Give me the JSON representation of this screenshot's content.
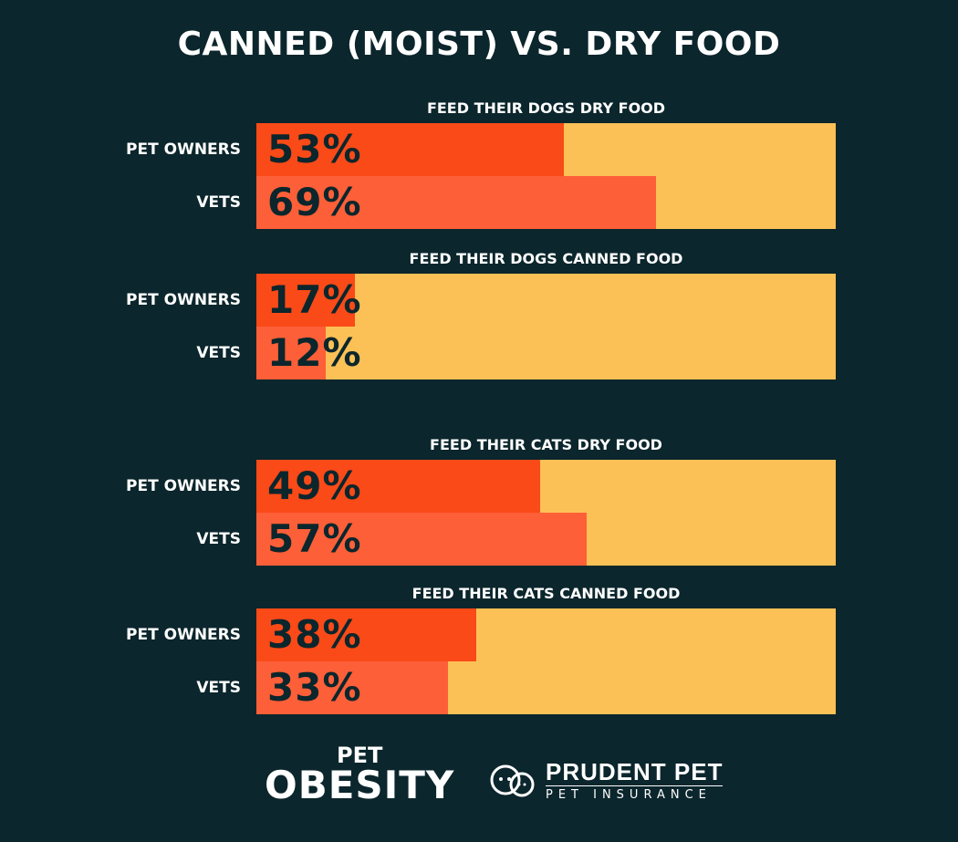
{
  "chart_data": {
    "type": "bar",
    "orientation": "horizontal",
    "title": "CANNED (MOIST) VS. DRY FOOD",
    "xlim": [
      0,
      100
    ],
    "unit": "%",
    "colors": {
      "background": "#0b262c",
      "pet_owners": "#f94a18",
      "vets": "#fd5f38",
      "track": "#fbc156"
    },
    "groups": [
      {
        "title": "FEED THEIR DOGS DRY FOOD",
        "rows": [
          {
            "label": "PET OWNERS",
            "value": 53,
            "text": "53%"
          },
          {
            "label": "VETS",
            "value": 69,
            "text": "69%"
          }
        ]
      },
      {
        "title": "FEED THEIR DOGS CANNED FOOD",
        "rows": [
          {
            "label": "PET OWNERS",
            "value": 17,
            "text": "17%"
          },
          {
            "label": "VETS",
            "value": 12,
            "text": "12%"
          }
        ]
      },
      {
        "title": "FEED THEIR CATS DRY FOOD",
        "rows": [
          {
            "label": "PET OWNERS",
            "value": 49,
            "text": "49%"
          },
          {
            "label": "VETS",
            "value": 57,
            "text": "57%"
          }
        ]
      },
      {
        "title": "FEED THEIR CATS CANNED FOOD",
        "rows": [
          {
            "label": "PET OWNERS",
            "value": 38,
            "text": "38%"
          },
          {
            "label": "VETS",
            "value": 33,
            "text": "33%"
          }
        ]
      }
    ]
  },
  "footer": {
    "logo1_line1": "PET",
    "logo1_line2": "OBESITY",
    "logo2_name": "PRUDENT PET",
    "logo2_sub": "PET INSURANCE",
    "logo2_icon": "dog-cat-icon"
  }
}
